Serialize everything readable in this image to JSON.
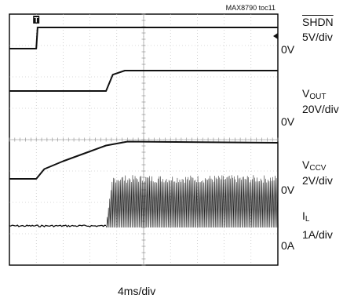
{
  "figure_tag": "MAX8790 toc11",
  "timebase": "4ms/div",
  "channels": [
    {
      "id": "shdn",
      "name": "SHDN",
      "overline": true,
      "scale": "5V/div",
      "zero": "0V"
    },
    {
      "id": "vout",
      "name_main": "V",
      "name_sub": "OUT",
      "scale": "20V/div",
      "zero": "0V"
    },
    {
      "id": "vccv",
      "name_main": "V",
      "name_sub": "CCV",
      "scale": "2V/div",
      "zero": "0V"
    },
    {
      "id": "il",
      "name_main": "I",
      "name_sub": "L",
      "scale": "1A/div",
      "zero": "0A"
    }
  ],
  "chart_data": {
    "type": "line",
    "title": "",
    "xlabel": "4ms/div",
    "x_unit": "div",
    "xlim": [
      0,
      10
    ],
    "ylim": [
      0,
      8
    ],
    "grid": true,
    "trigger_marker": "T",
    "series": [
      {
        "name": "SHDN",
        "scale": "5V/div",
        "x": [
          0,
          1.0,
          1.05,
          10
        ],
        "y": [
          0,
          0,
          1.0,
          1.0
        ]
      },
      {
        "name": "VOUT",
        "scale": "20V/div",
        "x": [
          0,
          3.6,
          3.85,
          4.3,
          10
        ],
        "y": [
          0,
          0,
          0.4,
          0.5,
          0.5
        ]
      },
      {
        "name": "VCCV",
        "scale": "2V/div",
        "x": [
          0,
          1.0,
          1.3,
          2.0,
          3.0,
          3.6,
          4.4,
          10
        ],
        "y": [
          0,
          0,
          0.25,
          0.45,
          0.7,
          0.85,
          0.95,
          0.92
        ]
      },
      {
        "name": "IL",
        "scale": "1A/div",
        "x": [
          0,
          3.6,
          3.85,
          10
        ],
        "y_baseline": [
          0,
          0,
          0,
          0
        ],
        "y_peak": [
          0,
          0,
          1.2,
          1.2
        ]
      }
    ]
  }
}
